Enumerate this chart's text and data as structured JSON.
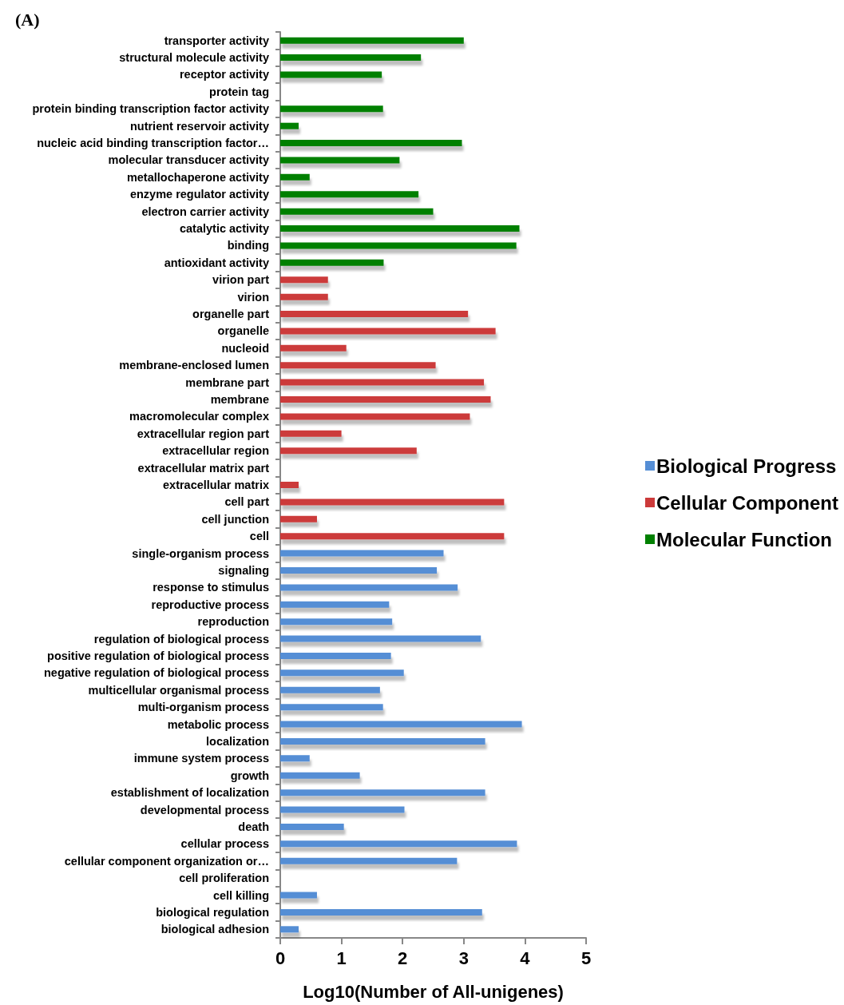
{
  "chart_data": {
    "type": "bar",
    "orientation": "horizontal",
    "title": "(A)",
    "xlabel": "Log10(Number of All-unigenes)",
    "categories": [
      "transporter activity",
      "structural molecule activity",
      "receptor activity",
      "protein tag",
      "protein binding transcription factor activity",
      "nutrient reservoir activity",
      "nucleic acid binding transcription factor…",
      "molecular transducer activity",
      "metallochaperone activity",
      "enzyme regulator activity",
      "electron carrier activity",
      "catalytic activity",
      "binding",
      "antioxidant activity",
      "virion part",
      "virion",
      "organelle part",
      "organelle",
      "nucleoid",
      "membrane-enclosed lumen",
      "membrane part",
      "membrane",
      "macromolecular complex",
      "extracellular region part",
      "extracellular region",
      "extracellular matrix part",
      "extracellular matrix",
      "cell part",
      "cell junction",
      "cell",
      "single-organism process",
      "signaling",
      "response to stimulus",
      "reproductive process",
      "reproduction",
      "regulation of biological process",
      "positive regulation of biological process",
      "negative regulation of biological process",
      "multicellular organismal process",
      "multi-organism process",
      "metabolic process",
      "localization",
      "immune system process",
      "growth",
      "establishment of localization",
      "developmental process",
      "death",
      "cellular process",
      "cellular component organization or…",
      "cell proliferation",
      "cell killing",
      "biological regulation",
      "biological adhesion"
    ],
    "series": [
      {
        "name": "Biological Progress",
        "color": "#558ed5",
        "values": [
          null,
          null,
          null,
          null,
          null,
          null,
          null,
          null,
          null,
          null,
          null,
          null,
          null,
          null,
          null,
          null,
          null,
          null,
          null,
          null,
          null,
          null,
          null,
          null,
          null,
          null,
          null,
          null,
          null,
          null,
          2.67,
          2.56,
          2.9,
          1.78,
          1.83,
          3.28,
          1.81,
          2.02,
          1.63,
          1.68,
          3.95,
          3.35,
          0.48,
          1.3,
          3.35,
          2.03,
          1.04,
          3.87,
          2.89,
          0,
          0.6,
          3.3,
          0.3
        ]
      },
      {
        "name": "Cellular Component",
        "color": "#cc3a3a",
        "values": [
          null,
          null,
          null,
          null,
          null,
          null,
          null,
          null,
          null,
          null,
          null,
          null,
          null,
          null,
          0.78,
          0.78,
          3.07,
          3.52,
          1.08,
          2.54,
          3.33,
          3.44,
          3.1,
          1.0,
          2.23,
          0,
          0.3,
          3.66,
          0.6,
          3.66,
          null,
          null,
          null,
          null,
          null,
          null,
          null,
          null,
          null,
          null,
          null,
          null,
          null,
          null,
          null,
          null,
          null,
          null,
          null,
          null,
          null,
          null,
          null
        ]
      },
      {
        "name": "Molecular Function",
        "color": "#008000",
        "values": [
          3.0,
          2.3,
          1.66,
          0,
          1.68,
          0.3,
          2.97,
          1.95,
          0.48,
          2.26,
          2.5,
          3.91,
          3.86,
          1.69,
          null,
          null,
          null,
          null,
          null,
          null,
          null,
          null,
          null,
          null,
          null,
          null,
          null,
          null,
          null,
          null,
          null,
          null,
          null,
          null,
          null,
          null,
          null,
          null,
          null,
          null,
          null,
          null,
          null,
          null,
          null,
          null,
          null,
          null,
          null,
          null,
          null,
          null,
          null
        ]
      }
    ],
    "xlim": [
      0,
      5
    ],
    "xticks": [
      0,
      1,
      2,
      3,
      4,
      5
    ],
    "grid": false,
    "legend": "right"
  }
}
